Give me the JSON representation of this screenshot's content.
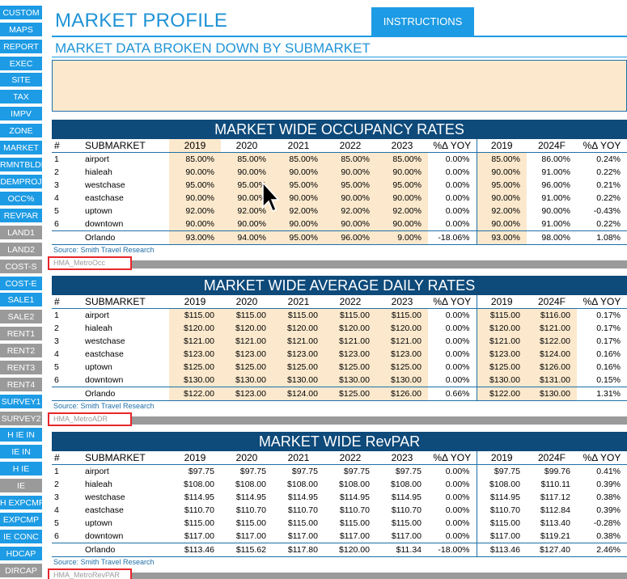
{
  "sidebar": {
    "items": [
      {
        "label": "CUSTOM",
        "style": "blue"
      },
      {
        "label": "MAPS",
        "style": "blue"
      },
      {
        "label": "REPORT",
        "style": "blue"
      },
      {
        "label": "EXEC",
        "style": "blue"
      },
      {
        "label": "SITE",
        "style": "blue"
      },
      {
        "label": "TAX",
        "style": "blue"
      },
      {
        "label": "IMPV",
        "style": "blue"
      },
      {
        "label": "ZONE",
        "style": "blue"
      },
      {
        "label": "MARKET",
        "style": "blue"
      },
      {
        "label": "RMNTBLDR",
        "style": "blue"
      },
      {
        "label": "DEMPROJ",
        "style": "blue"
      },
      {
        "label": "OCC%",
        "style": "blue"
      },
      {
        "label": "REVPAR",
        "style": "blue"
      },
      {
        "label": "LAND1",
        "style": "gray"
      },
      {
        "label": "LAND2",
        "style": "gray"
      },
      {
        "label": "COST-S",
        "style": "gray"
      },
      {
        "label": "COST-E",
        "style": "blue"
      },
      {
        "label": "SALE1",
        "style": "blue"
      },
      {
        "label": "SALE2",
        "style": "gray"
      },
      {
        "label": "RENT1",
        "style": "gray"
      },
      {
        "label": "RENT2",
        "style": "gray"
      },
      {
        "label": "RENT3",
        "style": "gray"
      },
      {
        "label": "RENT4",
        "style": "gray"
      },
      {
        "label": "SURVEY1",
        "style": "blue"
      },
      {
        "label": "SURVEY2",
        "style": "gray"
      },
      {
        "label": "H IE IN",
        "style": "blue"
      },
      {
        "label": "IE IN",
        "style": "blue"
      },
      {
        "label": "H IE",
        "style": "blue"
      },
      {
        "label": "IE",
        "style": "gray"
      },
      {
        "label": "H EXPCMP",
        "style": "blue"
      },
      {
        "label": "EXPCMP",
        "style": "blue"
      },
      {
        "label": "IE CONC",
        "style": "blue"
      },
      {
        "label": "HDCAP",
        "style": "blue"
      },
      {
        "label": "DIRCAP",
        "style": "gray"
      }
    ]
  },
  "header": {
    "title": "MARKET PROFILE",
    "instructions_label": "INSTRUCTIONS",
    "subtitle": "MARKET DATA BROKEN DOWN BY SUBMARKET"
  },
  "colors": {
    "accent": "#1d9be4",
    "title_bar": "#0e4a7a",
    "highlight": "#fce9cd",
    "range_outline": "#e8262b"
  },
  "tables": [
    {
      "title": "MARKET WIDE OCCUPANCY RATES",
      "highlight_mode": "occ",
      "headers": [
        "#",
        "SUBMARKET",
        "2019",
        "2020",
        "2021",
        "2022",
        "2023",
        "%Δ YOY",
        "2019",
        "2024F",
        "%Δ YOY"
      ],
      "rows": [
        [
          "1",
          "airport",
          "85.00%",
          "85.00%",
          "85.00%",
          "85.00%",
          "85.00%",
          "0.00%",
          "85.00%",
          "86.00%",
          "0.24%"
        ],
        [
          "2",
          "hialeah",
          "90.00%",
          "90.00%",
          "90.00%",
          "90.00%",
          "90.00%",
          "0.00%",
          "90.00%",
          "91.00%",
          "0.22%"
        ],
        [
          "3",
          "westchase",
          "95.00%",
          "95.00%",
          "95.00%",
          "95.00%",
          "95.00%",
          "0.00%",
          "95.00%",
          "96.00%",
          "0.21%"
        ],
        [
          "4",
          "eastchase",
          "90.00%",
          "90.00%",
          "90.00%",
          "90.00%",
          "90.00%",
          "0.00%",
          "90.00%",
          "91.00%",
          "0.22%"
        ],
        [
          "5",
          "uptown",
          "92.00%",
          "92.00%",
          "92.00%",
          "92.00%",
          "92.00%",
          "0.00%",
          "92.00%",
          "90.00%",
          "-0.43%"
        ],
        [
          "6",
          "downtown",
          "90.00%",
          "90.00%",
          "90.00%",
          "90.00%",
          "90.00%",
          "0.00%",
          "90.00%",
          "91.00%",
          "0.22%"
        ]
      ],
      "total": [
        "",
        "Orlando",
        "93.00%",
        "94.00%",
        "95.00%",
        "96.00%",
        "9.00%",
        "-18.06%",
        "93.00%",
        "98.00%",
        "1.08%"
      ],
      "source": "Source: Smith Travel Research",
      "range_name": "HMA_MetroOcc"
    },
    {
      "title": "MARKET WIDE AVERAGE DAILY RATES",
      "highlight_mode": "adr",
      "headers": [
        "#",
        "SUBMARKET",
        "2019",
        "2020",
        "2021",
        "2022",
        "2023",
        "%Δ YOY",
        "2019",
        "2024F",
        "%Δ YOY"
      ],
      "rows": [
        [
          "1",
          "airport",
          "$115.00",
          "$115.00",
          "$115.00",
          "$115.00",
          "$115.00",
          "0.00%",
          "$115.00",
          "$116.00",
          "0.17%"
        ],
        [
          "2",
          "hialeah",
          "$120.00",
          "$120.00",
          "$120.00",
          "$120.00",
          "$120.00",
          "0.00%",
          "$120.00",
          "$121.00",
          "0.17%"
        ],
        [
          "3",
          "westchase",
          "$121.00",
          "$121.00",
          "$121.00",
          "$121.00",
          "$121.00",
          "0.00%",
          "$121.00",
          "$122.00",
          "0.17%"
        ],
        [
          "4",
          "eastchase",
          "$123.00",
          "$123.00",
          "$123.00",
          "$123.00",
          "$123.00",
          "0.00%",
          "$123.00",
          "$124.00",
          "0.16%"
        ],
        [
          "5",
          "uptown",
          "$125.00",
          "$125.00",
          "$125.00",
          "$125.00",
          "$125.00",
          "0.00%",
          "$125.00",
          "$126.00",
          "0.16%"
        ],
        [
          "6",
          "downtown",
          "$130.00",
          "$130.00",
          "$130.00",
          "$130.00",
          "$130.00",
          "0.00%",
          "$130.00",
          "$131.00",
          "0.15%"
        ]
      ],
      "total": [
        "",
        "Orlando",
        "$122.00",
        "$123.00",
        "$124.00",
        "$125.00",
        "$126.00",
        "0.66%",
        "$122.00",
        "$130.00",
        "1.31%"
      ],
      "source": "Source: Smith Travel Research",
      "range_name": "HMA_MetroADR"
    },
    {
      "title": "MARKET WIDE RevPAR",
      "highlight_mode": "none",
      "headers": [
        "#",
        "SUBMARKET",
        "2019",
        "2020",
        "2021",
        "2022",
        "2023",
        "%Δ YOY",
        "2019",
        "2024F",
        "%Δ YOY"
      ],
      "rows": [
        [
          "1",
          "airport",
          "$97.75",
          "$97.75",
          "$97.75",
          "$97.75",
          "$97.75",
          "0.00%",
          "$97.75",
          "$99.76",
          "0.41%"
        ],
        [
          "2",
          "hialeah",
          "$108.00",
          "$108.00",
          "$108.00",
          "$108.00",
          "$108.00",
          "0.00%",
          "$108.00",
          "$110.11",
          "0.39%"
        ],
        [
          "3",
          "westchase",
          "$114.95",
          "$114.95",
          "$114.95",
          "$114.95",
          "$114.95",
          "0.00%",
          "$114.95",
          "$117.12",
          "0.38%"
        ],
        [
          "4",
          "eastchase",
          "$110.70",
          "$110.70",
          "$110.70",
          "$110.70",
          "$110.70",
          "0.00%",
          "$110.70",
          "$112.84",
          "0.39%"
        ],
        [
          "5",
          "uptown",
          "$115.00",
          "$115.00",
          "$115.00",
          "$115.00",
          "$115.00",
          "0.00%",
          "$115.00",
          "$113.40",
          "-0.28%"
        ],
        [
          "6",
          "downtown",
          "$117.00",
          "$117.00",
          "$117.00",
          "$117.00",
          "$117.00",
          "0.00%",
          "$117.00",
          "$119.21",
          "0.38%"
        ]
      ],
      "total": [
        "",
        "Orlando",
        "$113.46",
        "$115.62",
        "$117.80",
        "$120.00",
        "$11.34",
        "-18.00%",
        "$113.46",
        "$127.40",
        "2.46%"
      ],
      "source": "Source: Smith Travel Research",
      "range_name": "HMA_MetroRevPAR"
    }
  ]
}
